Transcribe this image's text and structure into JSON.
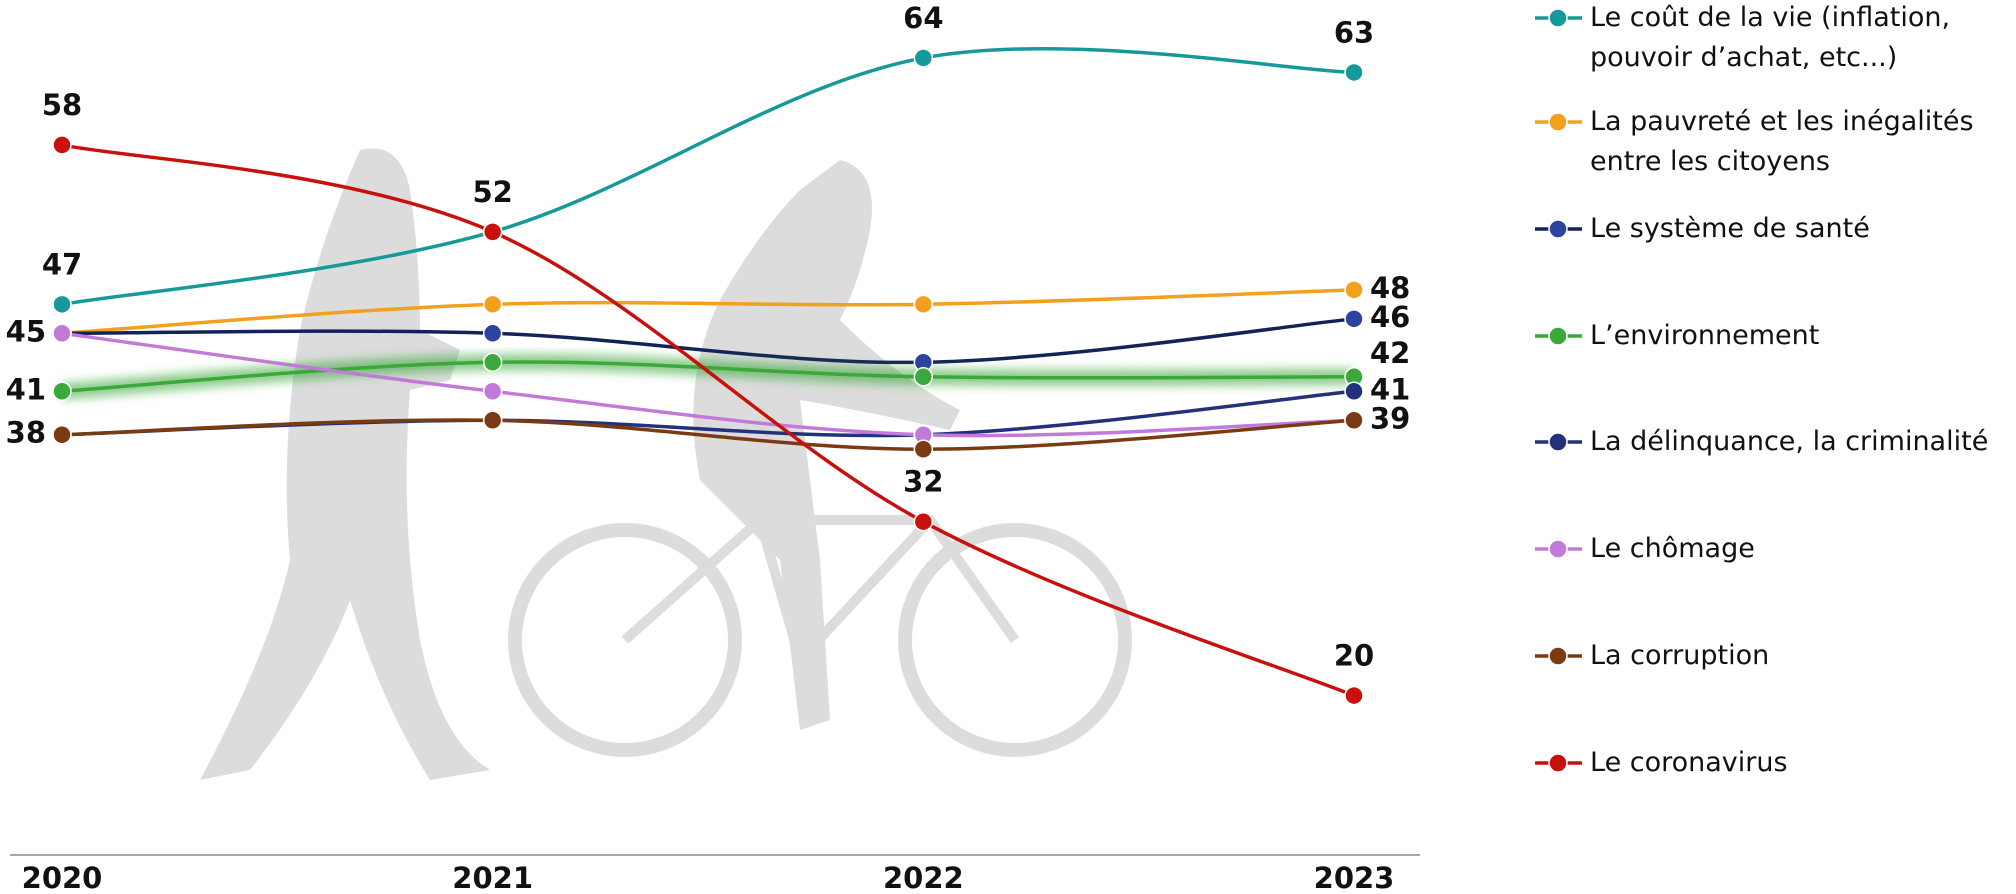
{
  "chart_data": {
    "type": "line",
    "categories": [
      "2020",
      "2021",
      "2022",
      "2023"
    ],
    "ylim": [
      9,
      68
    ],
    "series": [
      {
        "name": "Le coût de la vie (inflation, pouvoir d’achat, etc...)",
        "color": "#16999a",
        "values": [
          47,
          52,
          64,
          63
        ],
        "labels_at": [
          0,
          2,
          3
        ]
      },
      {
        "name": "La pauvreté et les inégalités entre les citoyens",
        "color": "#f2a01e",
        "values": [
          45,
          47,
          47,
          48
        ],
        "labels_at": [
          0,
          3
        ]
      },
      {
        "name": "Le système de santé",
        "color": "#13235a",
        "marker_color": "#2d43a0",
        "values": [
          45,
          45,
          43,
          46
        ],
        "labels_at": [
          3
        ]
      },
      {
        "name": "L’environnement",
        "color": "#3aa83a",
        "values": [
          41,
          43,
          42,
          42
        ],
        "labels_at": [
          0,
          3
        ],
        "highlight": true
      },
      {
        "name": "La délinquance, la criminalité",
        "color": "#22317a",
        "values": [
          38,
          39,
          38,
          41
        ],
        "labels_at": [
          3
        ]
      },
      {
        "name": "Le chômage",
        "color": "#c27ad8",
        "values": [
          45,
          41,
          38,
          39
        ],
        "labels_at": []
      },
      {
        "name": "La corruption",
        "color": "#7a3a12",
        "values": [
          38,
          39,
          37,
          39
        ],
        "labels_at": [
          0,
          3
        ]
      },
      {
        "name": "Le coronavirus",
        "color": "#c8100c",
        "values": [
          58,
          52,
          32,
          20
        ],
        "labels_at": [
          0,
          1,
          2,
          3
        ]
      }
    ]
  }
}
